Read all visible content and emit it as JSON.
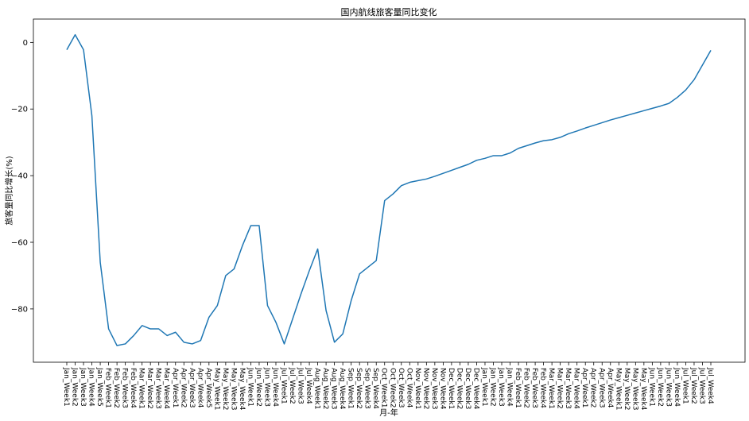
{
  "chart_data": {
    "type": "line",
    "title": "国内航线旅客量同比变化",
    "xlabel": "月-年",
    "ylabel": "旅客量同比增长(%)",
    "ylim": [
      -96,
      7
    ],
    "yticks": [
      0,
      -20,
      -40,
      -60,
      -80
    ],
    "grid": false,
    "line_color": "#1f77b4",
    "categories": [
      "Jan_Week1",
      "Jan_Week2",
      "Jan_Week3",
      "Jan_Week4",
      "Jan_Week5",
      "Feb_Week1",
      "Feb_Week2",
      "Feb_Week3",
      "Feb_Week4",
      "Mar_Week1",
      "Mar_Week2",
      "Mar_Week3",
      "Mar_Week4",
      "Apr_Week1",
      "Apr_Week2",
      "Apr_Week3",
      "Apr_Week4",
      "Apr_Week5",
      "May_Week1",
      "May_Week2",
      "May_Week3",
      "May_Week4",
      "Jun_Week1",
      "Jun_Week2",
      "Jun_Week3",
      "Jun_Week4",
      "Jul_Week1",
      "Jul_Week2",
      "Jul_Week3",
      "Jul_Week4",
      "Aug_Week1",
      "Aug_Week2",
      "Aug_Week3",
      "Aug_Week4",
      "Sep_Week1",
      "Sep_Week2",
      "Sep_Week3",
      "Sep_Week4",
      "Oct_Week1",
      "Oct_Week2",
      "Oct_Week3",
      "Oct_Week4",
      "Nov_Week1",
      "Nov_Week2",
      "Nov_Week3",
      "Nov_Week4",
      "Dec_Week1",
      "Dec_Week2",
      "Dec_Week3",
      "Dec_Week4",
      "Jan_Week1",
      "Jan_Week2",
      "Jan_Week3",
      "Jan_Week4",
      "Feb_Week1",
      "Feb_Week2",
      "Feb_Week3",
      "Feb_Week4",
      "Mar_Week1",
      "Mar_Week2",
      "Mar_Week3",
      "Mar_Week4",
      "Apr_Week1",
      "Apr_Week2",
      "Apr_Week3",
      "Apr_Week4",
      "May_Week1",
      "May_Week2",
      "May_Week3",
      "May_Week4",
      "Jun_Week1",
      "Jun_Week2",
      "Jun_Week3",
      "Jun_Week4",
      "Jul_Week1",
      "Jul_Week2",
      "Jul_Week3",
      "Jul_Week4"
    ],
    "values": [
      -2.2,
      2.3,
      -2.2,
      -22,
      -66,
      -86,
      -91,
      -90.5,
      -88,
      -85,
      -86,
      -86,
      -88,
      -87,
      -90,
      -90.5,
      -89.5,
      -82.5,
      -79,
      -70,
      -68,
      -61,
      -55,
      -55,
      -79,
      -84,
      -90.5,
      -83,
      -75.5,
      -68.5,
      -62,
      -80.5,
      -90,
      -87.5,
      -77.5,
      -69.5,
      -67.5,
      -65.5,
      -47.5,
      -45.5,
      -43,
      -42,
      -41.5,
      -41,
      -40.2,
      -39.3,
      -38.4,
      -37.5,
      -36.6,
      -35.4,
      -34.8,
      -34,
      -34,
      -33.2,
      -31.8,
      -31,
      -30.2,
      -29.5,
      -29.2,
      -28.5,
      -27.4,
      -26.6,
      -25.7,
      -24.9,
      -24.1,
      -23.3,
      -22.6,
      -21.9,
      -21.2,
      -20.5,
      -19.8,
      -19.1,
      -18.3,
      -16.5,
      -14.3,
      -11.2,
      -6.8,
      -2.4
    ]
  }
}
